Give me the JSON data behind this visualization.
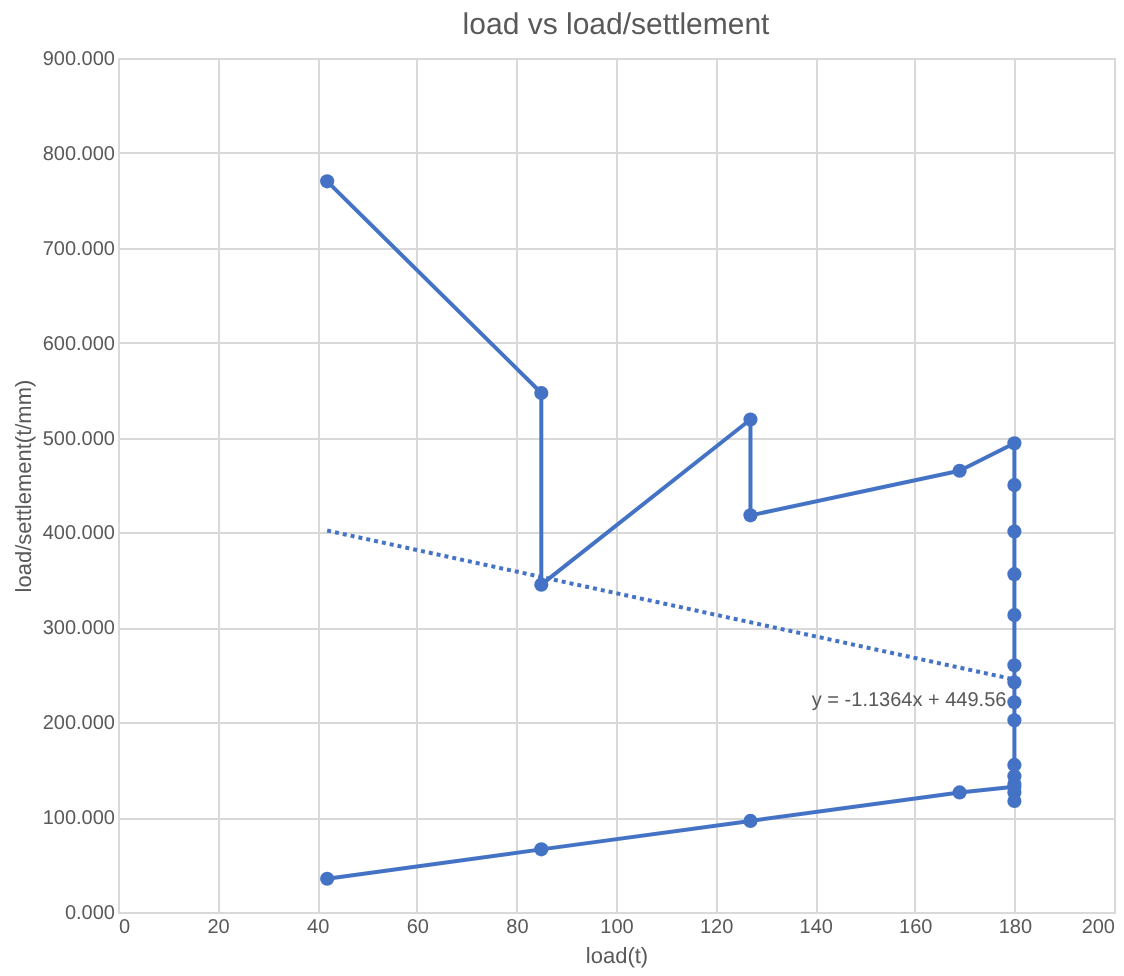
{
  "chart_data": {
    "type": "line",
    "title": "load vs load/settlement",
    "xlabel": "load(t)",
    "ylabel": "load/settlement(t/mm)",
    "xlim": [
      0,
      200
    ],
    "xticks": [
      0,
      20,
      40,
      60,
      80,
      100,
      120,
      140,
      160,
      180,
      200
    ],
    "ylim": [
      0,
      900
    ],
    "yticks": [
      {
        "value": 0,
        "label": "0.000"
      },
      {
        "value": 100,
        "label": "100.000"
      },
      {
        "value": 200,
        "label": "200.000"
      },
      {
        "value": 300,
        "label": "300.000"
      },
      {
        "value": 400,
        "label": "400.000"
      },
      {
        "value": 500,
        "label": "500.000"
      },
      {
        "value": 600,
        "label": "600.000"
      },
      {
        "value": 700,
        "label": "700.000"
      },
      {
        "value": 800,
        "label": "800.000"
      },
      {
        "value": 900,
        "label": "900.000"
      }
    ],
    "grid": true,
    "series": [
      {
        "color": "#4472c4",
        "marker": "circle",
        "line_style": "solid",
        "x": [
          42,
          85,
          85,
          127,
          127,
          169,
          180,
          180,
          180,
          180,
          180,
          180,
          180,
          180,
          180,
          180,
          180,
          180,
          180,
          180,
          180,
          169,
          127,
          85,
          42
        ],
        "values": [
          770,
          547,
          345,
          519,
          418,
          465,
          494,
          450,
          401,
          356,
          313,
          260,
          242,
          221,
          202,
          155,
          143,
          135,
          126,
          117,
          132,
          126,
          96,
          66,
          35
        ]
      },
      {
        "color": "#4472c4",
        "marker": "none",
        "line_style": "dotted",
        "x": [
          42,
          180
        ],
        "values": [
          402,
          245
        ]
      }
    ],
    "annotations": [
      "y = -1.1364x + 449.56"
    ]
  }
}
